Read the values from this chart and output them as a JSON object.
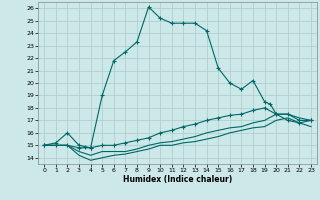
{
  "title": "",
  "xlabel": "Humidex (Indice chaleur)",
  "bg_color": "#cce8e8",
  "grid_color": "#aacccc",
  "line_color": "#006666",
  "xlim": [
    -0.5,
    23.5
  ],
  "ylim": [
    13.5,
    26.5
  ],
  "yticks": [
    14,
    15,
    16,
    17,
    18,
    19,
    20,
    21,
    22,
    23,
    24,
    25,
    26
  ],
  "xticks": [
    0,
    1,
    2,
    3,
    4,
    5,
    6,
    7,
    8,
    9,
    10,
    11,
    12,
    13,
    14,
    15,
    16,
    17,
    18,
    19,
    20,
    21,
    22,
    23
  ],
  "line1_x": [
    0,
    1,
    2,
    3,
    3.5,
    4,
    5,
    6,
    7,
    8,
    9,
    10,
    11,
    12,
    13,
    14,
    15,
    16,
    17,
    18,
    19,
    19.5,
    20,
    21,
    22,
    23
  ],
  "line1_y": [
    15.0,
    15.2,
    16.0,
    15.0,
    14.9,
    14.8,
    19.0,
    21.8,
    22.5,
    23.3,
    26.1,
    25.2,
    24.8,
    24.8,
    24.8,
    24.2,
    21.2,
    20.0,
    19.5,
    20.2,
    18.5,
    18.3,
    17.5,
    17.5,
    17.0,
    17.0
  ],
  "line2_x": [
    0,
    1,
    2,
    3,
    4,
    5,
    6,
    7,
    8,
    9,
    10,
    11,
    12,
    13,
    14,
    15,
    16,
    17,
    18,
    19,
    20,
    21,
    22,
    23
  ],
  "line2_y": [
    15.0,
    15.0,
    15.0,
    14.8,
    14.8,
    15.0,
    15.0,
    15.2,
    15.4,
    15.6,
    16.0,
    16.2,
    16.5,
    16.7,
    17.0,
    17.2,
    17.4,
    17.5,
    17.8,
    18.0,
    17.5,
    17.0,
    16.8,
    17.0
  ],
  "line3_x": [
    0,
    1,
    2,
    3,
    4,
    5,
    6,
    7,
    8,
    9,
    10,
    11,
    12,
    13,
    14,
    15,
    16,
    17,
    18,
    19,
    20,
    21,
    22,
    23
  ],
  "line3_y": [
    15.0,
    15.0,
    15.0,
    14.5,
    14.2,
    14.5,
    14.5,
    14.5,
    14.7,
    15.0,
    15.2,
    15.3,
    15.5,
    15.7,
    16.0,
    16.2,
    16.4,
    16.5,
    16.8,
    17.0,
    17.5,
    17.5,
    17.2,
    17.0
  ],
  "line4_x": [
    0,
    1,
    2,
    3,
    4,
    5,
    6,
    7,
    8,
    9,
    10,
    11,
    12,
    13,
    14,
    15,
    16,
    17,
    18,
    19,
    20,
    21,
    22,
    23
  ],
  "line4_y": [
    15.0,
    15.0,
    15.0,
    14.2,
    13.8,
    14.0,
    14.2,
    14.3,
    14.5,
    14.7,
    15.0,
    15.0,
    15.2,
    15.3,
    15.5,
    15.7,
    16.0,
    16.2,
    16.4,
    16.5,
    17.0,
    17.2,
    16.8,
    16.5
  ]
}
